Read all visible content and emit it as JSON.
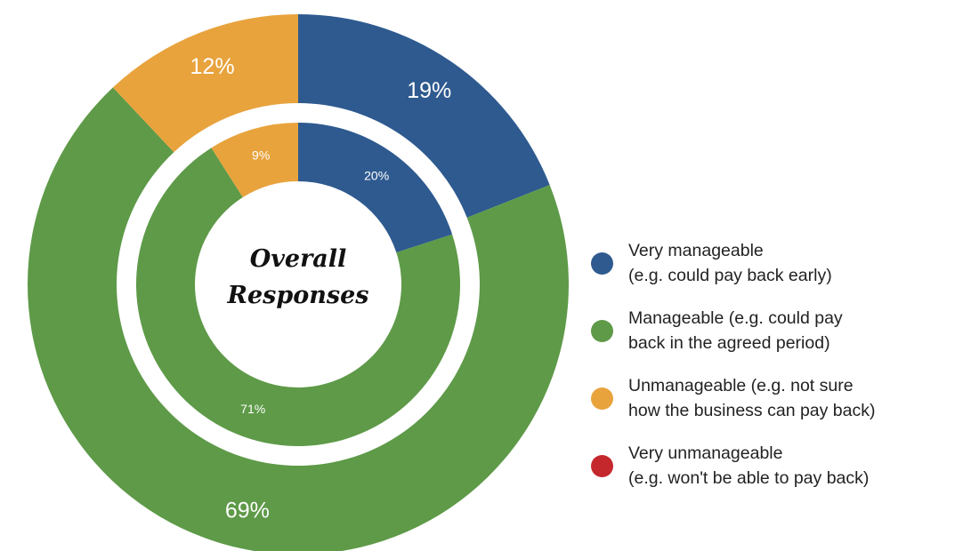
{
  "chart_data": {
    "type": "pie",
    "subtype": "nested-donut",
    "center_title": [
      "Overall",
      "Responses"
    ],
    "categories": [
      "Very manageable (e.g. could pay back early)",
      "Manageable (e.g. could pay back in the agreed period)",
      "Unmanageable (e.g. not sure how the business can pay back)",
      "Very unmanageable (e.g. won't be able to pay back)"
    ],
    "colors": [
      "#2e5a8f",
      "#5e9a48",
      "#e8a33d",
      "#c4282d"
    ],
    "series": [
      {
        "ring": "outer",
        "values": [
          19,
          69,
          12,
          0
        ],
        "labels": [
          "19%",
          "69%",
          "12%",
          ""
        ]
      },
      {
        "ring": "inner",
        "values": [
          20,
          71,
          9,
          0
        ],
        "labels": [
          "20%",
          "71%",
          "9%",
          ""
        ]
      }
    ],
    "legend": {
      "placement": "right",
      "items": [
        {
          "lines": [
            "Very manageable",
            "(e.g. could pay back early)"
          ],
          "color": "#2e5a8f"
        },
        {
          "lines": [
            "Manageable (e.g. could pay",
            "back in the agreed period)"
          ],
          "color": "#5e9a48"
        },
        {
          "lines": [
            "Unmanageable (e.g. not sure",
            "how the business can pay back)"
          ],
          "color": "#e8a33d"
        },
        {
          "lines": [
            "Very unmanageable",
            "(e.g. won't be able to pay back)"
          ],
          "color": "#c4282d"
        }
      ]
    }
  }
}
